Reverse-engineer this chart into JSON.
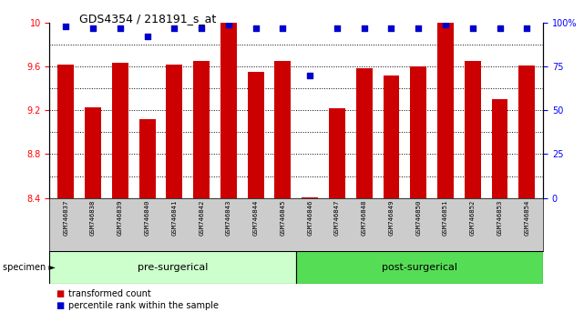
{
  "title": "GDS4354 / 218191_s_at",
  "samples": [
    "GSM746837",
    "GSM746838",
    "GSM746839",
    "GSM746840",
    "GSM746841",
    "GSM746842",
    "GSM746843",
    "GSM746844",
    "GSM746845",
    "GSM746846",
    "GSM746847",
    "GSM746848",
    "GSM746849",
    "GSM746850",
    "GSM746851",
    "GSM746852",
    "GSM746853",
    "GSM746854"
  ],
  "bar_values": [
    9.62,
    9.23,
    9.63,
    9.12,
    9.62,
    9.65,
    10.0,
    9.55,
    9.65,
    8.41,
    9.22,
    9.58,
    9.52,
    9.6,
    10.0,
    9.65,
    9.3,
    9.61
  ],
  "percentile_values": [
    98,
    97,
    97,
    92,
    97,
    97,
    99,
    97,
    97,
    70,
    97,
    97,
    97,
    97,
    99,
    97,
    97,
    97
  ],
  "bar_color": "#cc0000",
  "percentile_color": "#0000cc",
  "ylim_left": [
    8.4,
    10.0
  ],
  "ylim_right": [
    0,
    100
  ],
  "yticks_left": [
    8.4,
    8.8,
    9.2,
    9.6,
    10.0
  ],
  "ytick_labels_left": [
    "8.4",
    "8.8",
    "9.2",
    "9.6",
    "10"
  ],
  "yticks_right": [
    0,
    25,
    50,
    75,
    100
  ],
  "ytick_labels_right": [
    "0",
    "25",
    "50",
    "75",
    "100%"
  ],
  "grid_ticks": [
    8.6,
    8.8,
    9.0,
    9.2,
    9.4,
    9.6,
    9.8
  ],
  "pre_surgical_count": 9,
  "post_surgical_count": 9,
  "pre_surgical_color": "#ccffcc",
  "post_surgical_color": "#55dd55",
  "tick_area_color": "#cccccc",
  "legend_red_label": "transformed count",
  "legend_blue_label": "percentile rank within the sample",
  "specimen_label": "specimen"
}
